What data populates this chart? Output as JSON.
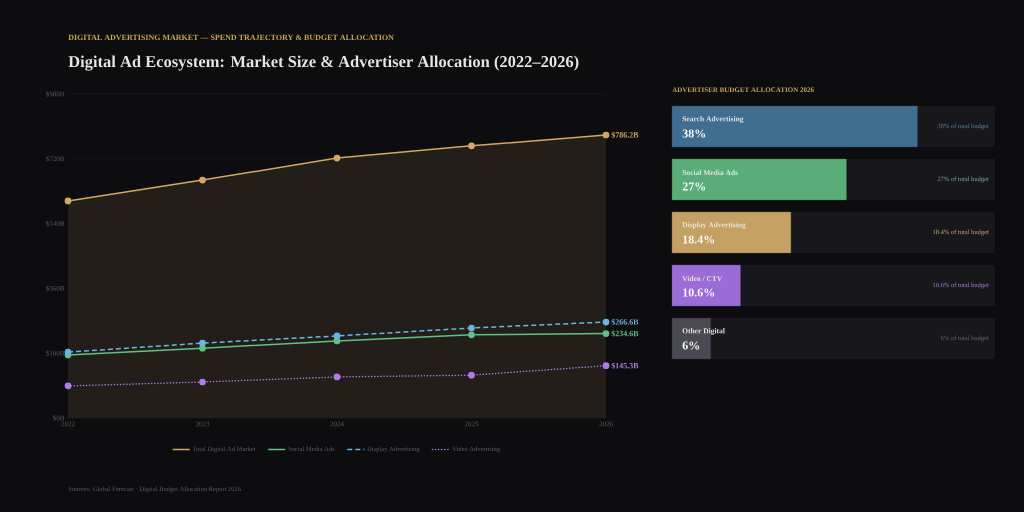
{
  "chart_data": [
    {
      "type": "line",
      "subtitle": "DIGITAL ADVERTISING MARKET — SPEND TRAJECTORY & BUDGET ALLOCATION",
      "title": "Digital Ad Ecosystem: Market Size & Advertiser Allocation (2022–2026)",
      "categories": [
        "2022",
        "2023",
        "2024",
        "2025",
        "2026"
      ],
      "series": [
        {
          "name": "Total Digital Ad Market",
          "type": "area",
          "color": "#d4a862",
          "line_style": "solid",
          "values": [
            603,
            661,
            722,
            756,
            786.2
          ],
          "value_labels": [
            null,
            null,
            null,
            null,
            "$786.2B"
          ]
        },
        {
          "name": "Social Media Ads",
          "color": "#62c087",
          "line_style": "solid",
          "values": [
            175,
            194,
            214,
            231,
            234.6
          ],
          "value_labels": [
            null,
            null,
            null,
            null,
            "$234.6B"
          ]
        },
        {
          "name": "Display Advertising",
          "color": "#6cb4e4",
          "line_style": "dashed",
          "values": [
            183,
            208,
            228,
            250,
            266.6
          ],
          "value_labels": [
            null,
            null,
            null,
            null,
            "$266.6B"
          ]
        },
        {
          "name": "Video Advertising",
          "color": "#b07ce6",
          "line_style": "dotted",
          "values": [
            89,
            100,
            114,
            119,
            145.3
          ],
          "value_labels": [
            null,
            null,
            null,
            null,
            "$145.3B"
          ]
        }
      ],
      "ylim": [
        0,
        900
      ],
      "yticks": [
        {
          "value": 0,
          "label": "$0B"
        },
        {
          "value": 180,
          "label": "$180B"
        },
        {
          "value": 360,
          "label": "$360B"
        },
        {
          "value": 540,
          "label": "$540B"
        },
        {
          "value": 720,
          "label": "$720B"
        },
        {
          "value": 900,
          "label": "$900B"
        }
      ],
      "grid": "y",
      "legend": "bottom",
      "marker": "circle",
      "annotations": [
        "Sources: Global Forecast · Digital Budget Allocation Report 2026"
      ]
    },
    {
      "type": "bar",
      "orientation": "horizontal",
      "title": "ADVERTISER BUDGET ALLOCATION 2026",
      "categories": [
        "Search Advertising",
        "Social Media Ads",
        "Display Advertising",
        "Video / CTV",
        "Other Digital"
      ],
      "values": [
        38,
        27,
        18.4,
        10.6,
        6
      ],
      "colors": [
        "#3f6e90",
        "#5aac78",
        "#c4a062",
        "#9b6bd6",
        "#4a4a55"
      ],
      "value_labels": [
        "38%",
        "27%",
        "18.4%",
        "10.6%",
        "6%"
      ],
      "xlim": [
        0,
        50
      ],
      "annotations": [
        "38% of total budget",
        "27% of total budget",
        "18.4% of total budget",
        "10.6% of total budget",
        "6% of total budget"
      ]
    }
  ]
}
